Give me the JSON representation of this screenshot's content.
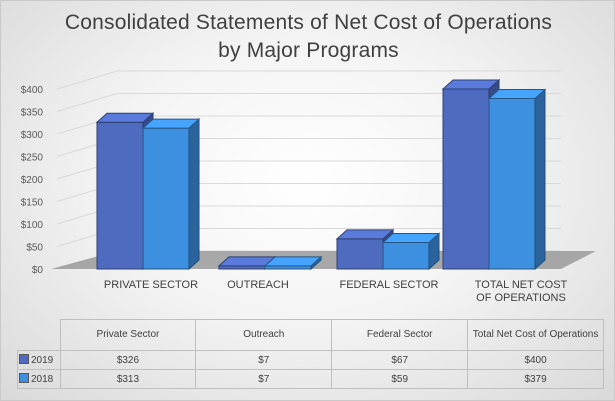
{
  "chart_data": {
    "type": "bar",
    "title": "Consolidated Statements of Net Cost of Operations by Major Programs",
    "categories": [
      "PRIVATE SECTOR",
      "OUTREACH",
      "FEDERAL SECTOR",
      "TOTAL NET COST OF OPERATIONS"
    ],
    "table_categories": [
      "Private Sector",
      "Outreach",
      "Federal Sector",
      "Total Net Cost of Operations"
    ],
    "series": [
      {
        "name": "2019",
        "values": [
          326,
          7,
          67,
          400
        ],
        "labels": [
          "$326",
          "$7",
          "$67",
          "$400"
        ],
        "color": "#4f6bbf"
      },
      {
        "name": "2018",
        "values": [
          313,
          7,
          59,
          379
        ],
        "labels": [
          "$313",
          "$7",
          "$59",
          "$379"
        ],
        "color": "#3d8fe0"
      }
    ],
    "y_ticks": [
      "$0",
      "$50",
      "$100",
      "$150",
      "$200",
      "$250",
      "$300",
      "$350",
      "$400"
    ],
    "ylim": [
      0,
      400
    ],
    "grid": true,
    "legend": "data-table"
  }
}
